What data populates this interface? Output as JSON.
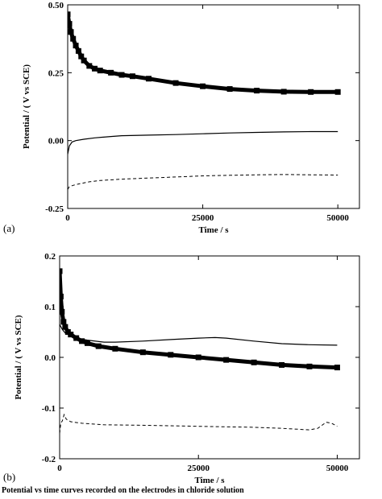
{
  "chart_data": [
    {
      "panel": "(a)",
      "type": "line",
      "xlabel": "Time / s",
      "ylabel": "Potential / ( V vs SCE)",
      "xlim": [
        0,
        54000
      ],
      "ylim": [
        -0.25,
        0.5
      ],
      "xticks": [
        0,
        25000,
        50000
      ],
      "xtick_labels": [
        "0",
        "25000",
        "50000"
      ],
      "yticks": [
        -0.25,
        0,
        0.25,
        0.5
      ],
      "ytick_labels": [
        "-0.25",
        "0.00",
        "0.25",
        "0.50"
      ],
      "grid": false,
      "series": [
        {
          "style": "thick-square-markers",
          "x": [
            0,
            300,
            600,
            1000,
            1500,
            2000,
            2500,
            3000,
            4000,
            5000,
            6000,
            8000,
            10000,
            12000,
            15000,
            20000,
            25000,
            30000,
            35000,
            40000,
            45000,
            50000
          ],
          "y": [
            0.465,
            0.43,
            0.4,
            0.375,
            0.35,
            0.33,
            0.31,
            0.295,
            0.275,
            0.265,
            0.258,
            0.25,
            0.242,
            0.237,
            0.228,
            0.212,
            0.2,
            0.19,
            0.184,
            0.18,
            0.179,
            0.179
          ]
        },
        {
          "style": "thin-solid",
          "x": [
            0,
            300,
            800,
            1500,
            3000,
            5000,
            8000,
            10000,
            15000,
            20000,
            25000,
            30000,
            35000,
            40000,
            45000,
            50000
          ],
          "y": [
            -0.05,
            -0.02,
            -0.005,
            0.0,
            0.005,
            0.01,
            0.015,
            0.018,
            0.02,
            0.022,
            0.025,
            0.028,
            0.03,
            0.032,
            0.033,
            0.033
          ]
        },
        {
          "style": "dashed",
          "x": [
            0,
            300,
            1000,
            2000,
            4000,
            6000,
            10000,
            15000,
            20000,
            25000,
            30000,
            35000,
            40000,
            45000,
            50000
          ],
          "y": [
            -0.18,
            -0.17,
            -0.165,
            -0.16,
            -0.152,
            -0.147,
            -0.142,
            -0.138,
            -0.134,
            -0.13,
            -0.128,
            -0.126,
            -0.125,
            -0.126,
            -0.127
          ]
        }
      ]
    },
    {
      "panel": "(b)",
      "type": "line",
      "xlabel": "Time / s",
      "ylabel": "Potential / ( V vs SCE)",
      "xlim": [
        0,
        54000
      ],
      "ylim": [
        -0.2,
        0.2
      ],
      "xticks": [
        0,
        25000,
        50000
      ],
      "xtick_labels": [
        "0",
        "25000",
        "50000"
      ],
      "yticks": [
        -0.2,
        -0.1,
        0,
        0.1,
        0.2
      ],
      "ytick_labels": [
        "-0.2",
        "-0.1",
        "0.0",
        "0.1",
        "0.2"
      ],
      "grid": false,
      "series": [
        {
          "style": "thick-square-markers",
          "x": [
            0,
            200,
            400,
            700,
            1000,
            1500,
            2000,
            3000,
            4000,
            5000,
            7000,
            10000,
            15000,
            20000,
            25000,
            30000,
            35000,
            40000,
            45000,
            50000
          ],
          "y": [
            0.17,
            0.12,
            0.09,
            0.07,
            0.06,
            0.05,
            0.045,
            0.038,
            0.032,
            0.028,
            0.022,
            0.017,
            0.01,
            0.005,
            0.0,
            -0.005,
            -0.01,
            -0.015,
            -0.018,
            -0.02
          ]
        },
        {
          "style": "thin-solid",
          "x": [
            0,
            500,
            1000,
            2000,
            3000,
            5000,
            8000,
            10000,
            15000,
            20000,
            25000,
            28000,
            30000,
            35000,
            40000,
            45000,
            50000
          ],
          "y": [
            0.065,
            0.055,
            0.048,
            0.042,
            0.038,
            0.034,
            0.03,
            0.03,
            0.032,
            0.035,
            0.038,
            0.039,
            0.038,
            0.032,
            0.027,
            0.025,
            0.024
          ]
        },
        {
          "style": "dashed",
          "x": [
            0,
            200,
            500,
            800,
            1200,
            2000,
            4000,
            8000,
            15000,
            20000,
            25000,
            30000,
            35000,
            40000,
            45000,
            46500,
            48000,
            49000,
            50000
          ],
          "y": [
            -0.15,
            -0.13,
            -0.125,
            -0.113,
            -0.122,
            -0.127,
            -0.13,
            -0.133,
            -0.134,
            -0.135,
            -0.136,
            -0.137,
            -0.138,
            -0.14,
            -0.143,
            -0.14,
            -0.128,
            -0.13,
            -0.136
          ]
        }
      ]
    }
  ]
}
